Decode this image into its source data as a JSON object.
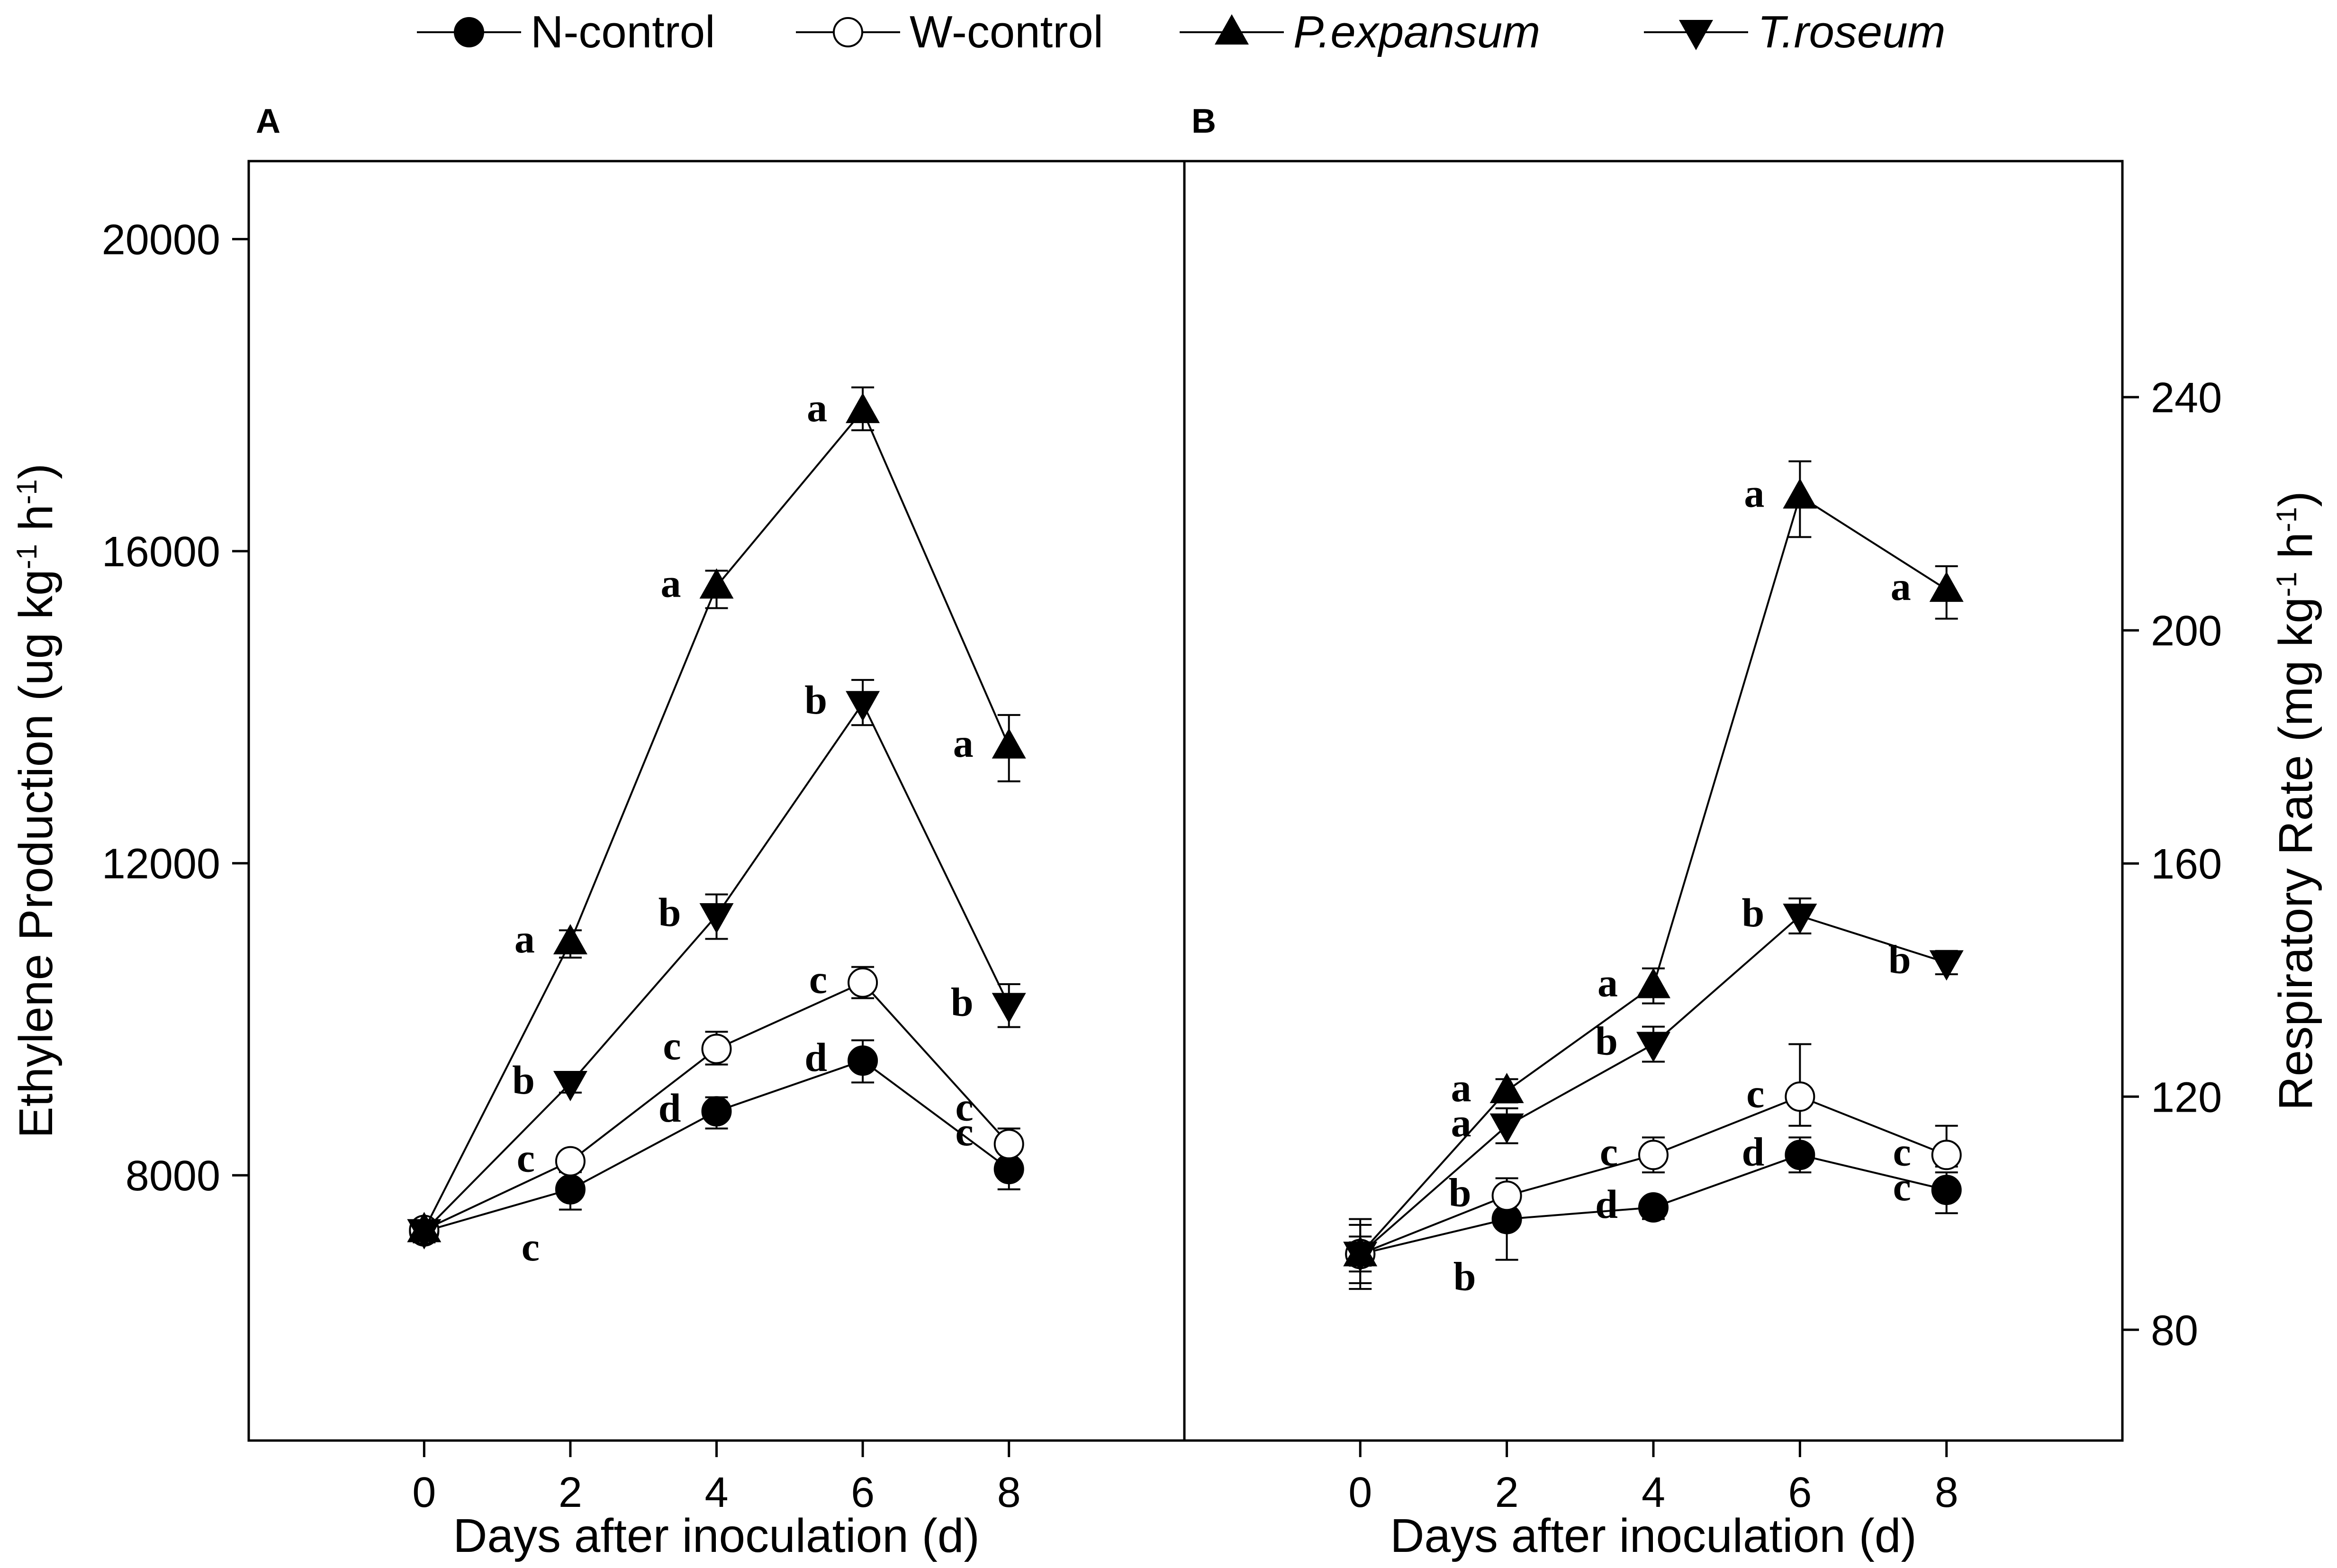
{
  "legend": {
    "entries": [
      {
        "label": "N-control",
        "marker": "circle-filled",
        "italic": false
      },
      {
        "label": "W-control",
        "marker": "circle-open",
        "italic": false
      },
      {
        "label": "P.expansum",
        "marker": "triangle-up",
        "italic": true
      },
      {
        "label": "T.roseum",
        "marker": "triangle-down",
        "italic": true
      }
    ]
  },
  "chart_data": [
    {
      "panel_label": "A",
      "type": "line",
      "xlabel": "Days after inoculation (d)",
      "ylabel": "Ethylene Production (ug kg",
      "ylabel_sup1": "-1",
      "ylabel_mid": " h",
      "ylabel_sup2": "-1",
      "ylabel_end": ")",
      "x": [
        0,
        2,
        4,
        6,
        8
      ],
      "xlim": [
        -2.4,
        10.4
      ],
      "ylim": [
        4600,
        21000
      ],
      "xticks": [
        0,
        2,
        4,
        6,
        8
      ],
      "yticks": [
        8000,
        12000,
        16000,
        20000
      ],
      "series": [
        {
          "name": "N-control",
          "marker": "circle-filled",
          "values": [
            7280,
            7820,
            8820,
            9470,
            8080
          ],
          "err_up": [
            140,
            220,
            180,
            260,
            220
          ],
          "err_down": [
            140,
            260,
            220,
            280,
            260
          ],
          "letters": [
            "",
            "c",
            "d",
            "d",
            "c"
          ],
          "letter_pos": [
            "",
            "below",
            "left",
            "left",
            "left-above"
          ]
        },
        {
          "name": "W-control",
          "marker": "circle-open",
          "values": [
            7300,
            8180,
            9620,
            10470,
            8400
          ],
          "err_up": [
            120,
            60,
            220,
            200,
            200
          ],
          "err_down": [
            120,
            60,
            200,
            200,
            220
          ],
          "letters": [
            "",
            "c",
            "c",
            "c",
            "c"
          ],
          "letter_pos": [
            "",
            "left",
            "left",
            "left",
            "left-above"
          ]
        },
        {
          "name": "P.expansum",
          "marker": "triangle-up",
          "values": [
            7300,
            10990,
            15550,
            17800,
            13500
          ],
          "err_up": [
            100,
            150,
            200,
            300,
            400
          ],
          "err_down": [
            100,
            200,
            280,
            250,
            450
          ],
          "letters": [
            "",
            "a",
            "a",
            "a",
            "a"
          ],
          "letter_pos": [
            "",
            "left",
            "left",
            "left",
            "left"
          ]
        },
        {
          "name": "T.roseum",
          "marker": "triangle-down",
          "values": [
            7280,
            9180,
            11330,
            14050,
            10180
          ],
          "err_up": [
            120,
            120,
            270,
            300,
            270
          ],
          "err_down": [
            120,
            120,
            300,
            280,
            280
          ],
          "letters": [
            "",
            "b",
            "b",
            "b",
            "b"
          ],
          "letter_pos": [
            "",
            "left",
            "left",
            "left",
            "left"
          ]
        }
      ]
    },
    {
      "panel_label": "B",
      "type": "line",
      "xlabel": "Days after inoculation (d)",
      "ylabel": "Respiratory Rate (mg kg",
      "ylabel_sup1": "-1",
      "ylabel_mid": " h",
      "ylabel_sup2": "-1",
      "ylabel_end": ")",
      "x": [
        0,
        2,
        4,
        6,
        8
      ],
      "xlim": [
        -2.4,
        10.4
      ],
      "ylim": [
        61,
        280.5
      ],
      "xticks": [
        0,
        2,
        4,
        6,
        8
      ],
      "yticks": [
        80,
        120,
        160,
        200,
        240
      ],
      "series": [
        {
          "name": "N-control",
          "marker": "circle-filled",
          "values": [
            93,
            99,
            101,
            110,
            104
          ],
          "err_up": [
            6,
            3,
            1.5,
            3,
            3
          ],
          "err_down": [
            6,
            7,
            2,
            3,
            4
          ],
          "letters": [
            "",
            "b",
            "d",
            "d",
            "c"
          ],
          "letter_pos": [
            "",
            "below",
            "left",
            "left",
            "left"
          ]
        },
        {
          "name": "W-control",
          "marker": "circle-open",
          "values": [
            93,
            103,
            110,
            120,
            110
          ],
          "err_up": [
            5,
            3,
            3,
            9,
            5
          ],
          "err_down": [
            5,
            3,
            3,
            5,
            2
          ],
          "letters": [
            "",
            "b",
            "c",
            "c",
            "c"
          ],
          "letter_pos": [
            "",
            "left",
            "left",
            "left",
            "left"
          ]
        },
        {
          "name": "P.expansum",
          "marker": "triangle-up",
          "values": [
            93,
            121,
            139,
            223,
            207
          ],
          "err_up": [
            3,
            2,
            3,
            6,
            4
          ],
          "err_down": [
            3,
            2,
            3,
            7,
            5
          ],
          "letters": [
            "",
            "a",
            "a",
            "a",
            "a"
          ],
          "letter_pos": [
            "",
            "left",
            "left",
            "left",
            "left"
          ]
        },
        {
          "name": "T.roseum",
          "marker": "triangle-down",
          "values": [
            93,
            115,
            129,
            151,
            143
          ],
          "err_up": [
            2,
            3,
            3,
            3,
            2
          ],
          "err_down": [
            2,
            3,
            3,
            3,
            2
          ],
          "letters": [
            "",
            "a",
            "b",
            "b",
            "b"
          ],
          "letter_pos": [
            "",
            "left",
            "left",
            "left",
            "left"
          ]
        }
      ]
    }
  ]
}
